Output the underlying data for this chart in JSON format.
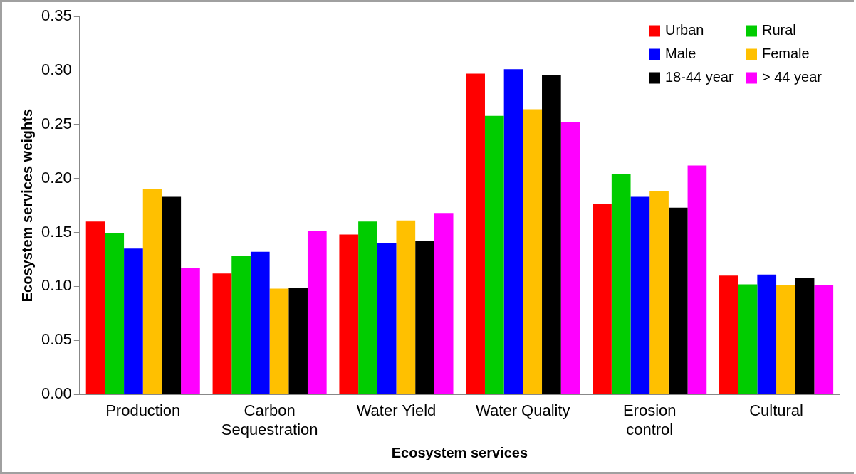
{
  "chart_data": {
    "type": "bar",
    "xlabel": "Ecosystem services",
    "ylabel": "Ecosystem services weights",
    "categories": [
      "Production",
      "Carbon Sequestration",
      "Water Yield",
      "Water Quality",
      "Erosion control",
      "Cultural"
    ],
    "series": [
      {
        "name": "Urban",
        "color": "#ff0000",
        "values": [
          0.16,
          0.112,
          0.148,
          0.297,
          0.176,
          0.11
        ]
      },
      {
        "name": "Rural",
        "color": "#00cc00",
        "values": [
          0.149,
          0.128,
          0.16,
          0.258,
          0.204,
          0.102
        ]
      },
      {
        "name": "Male",
        "color": "#0000ff",
        "values": [
          0.135,
          0.132,
          0.14,
          0.301,
          0.183,
          0.111
        ]
      },
      {
        "name": "Female",
        "color": "#ffc000",
        "values": [
          0.19,
          0.098,
          0.161,
          0.264,
          0.188,
          0.101
        ]
      },
      {
        "name": "18-44 year",
        "color": "#000000",
        "values": [
          0.183,
          0.099,
          0.142,
          0.296,
          0.173,
          0.108
        ]
      },
      {
        "name": "> 44 year",
        "color": "#ff00ff",
        "values": [
          0.117,
          0.151,
          0.168,
          0.252,
          0.212,
          0.101
        ]
      }
    ],
    "ylim": [
      0,
      0.35
    ],
    "yticks": [
      {
        "value": 0,
        "label": "0.00"
      },
      {
        "value": 0.05,
        "label": "0.05"
      },
      {
        "value": 0.1,
        "label": "0.10"
      },
      {
        "value": 0.15,
        "label": "0.15"
      },
      {
        "value": 0.2,
        "label": "0.20"
      },
      {
        "value": 0.25,
        "label": "0.25"
      },
      {
        "value": 0.3,
        "label": "0.30"
      },
      {
        "value": 0.35,
        "label": "0.35"
      }
    ],
    "grid": false,
    "legend": "top right"
  }
}
